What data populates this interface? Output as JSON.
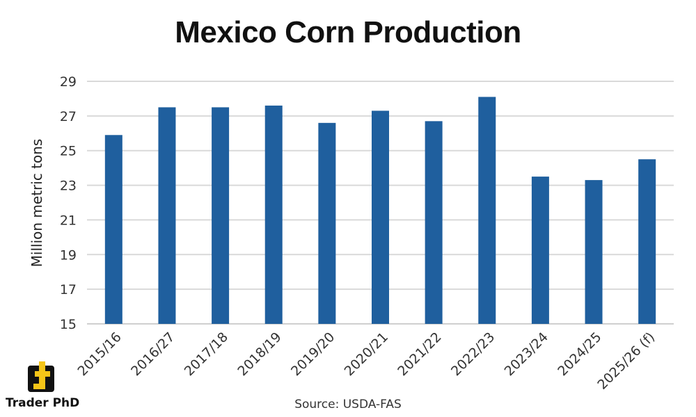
{
  "colors": {
    "bar": "#1f5f9e",
    "grid": "#d9d9d9",
    "axis": "#cfcfcf",
    "logo_yellow": "#f5c518",
    "logo_black": "#111111"
  },
  "logo": {
    "text": "Trader PhD",
    "icon": "trader-phd-logo-icon"
  },
  "source": "Source: USDA-FAS",
  "chart_data": {
    "type": "bar",
    "title": "Mexico Corn Production",
    "xlabel": "",
    "ylabel": "Million metric tons",
    "ylim": [
      15,
      29
    ],
    "yticks": [
      15,
      17,
      19,
      21,
      23,
      25,
      27,
      29
    ],
    "grid": true,
    "categories": [
      "2015/16",
      "2016/27",
      "2017/18",
      "2018/19",
      "2019/20",
      "2020/21",
      "2021/22",
      "2022/23",
      "2023/24",
      "2024/25",
      "2025/26 (f)"
    ],
    "values": [
      25.9,
      27.5,
      27.5,
      27.6,
      26.6,
      27.3,
      26.7,
      28.1,
      23.5,
      23.3,
      24.5
    ]
  }
}
